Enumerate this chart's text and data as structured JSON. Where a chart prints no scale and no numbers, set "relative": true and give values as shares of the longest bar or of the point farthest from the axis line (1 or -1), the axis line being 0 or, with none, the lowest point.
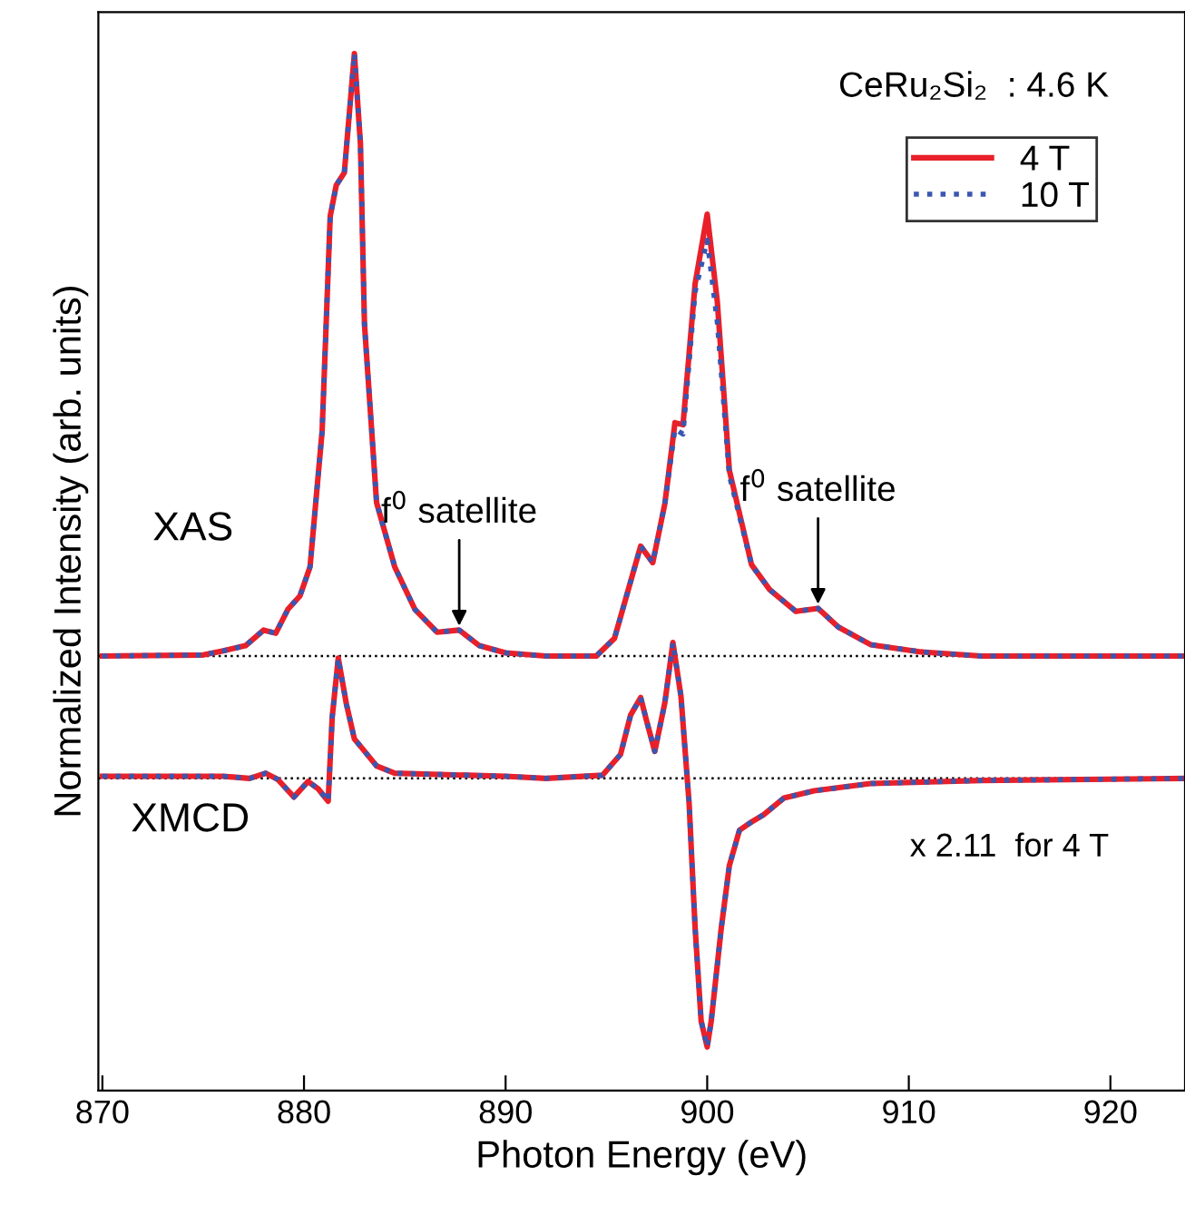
{
  "chart_data": {
    "type": "line",
    "relative": true,
    "xlabel": "Photon Energy (eV)",
    "ylabel": "Normalized Intensity (arb. units)",
    "xlim": [
      869.8,
      923.7
    ],
    "xticks": [
      870,
      880,
      890,
      900,
      910,
      920
    ],
    "legend": "top right",
    "grid": false,
    "marker": "none",
    "series": [
      {
        "name": "4 T",
        "color": "#e8202a",
        "line_style": "solid",
        "x": [
          870,
          875,
          876.0,
          877.1,
          878.0,
          878.6,
          879.2,
          879.8,
          880.3,
          880.9,
          881.3,
          881.6,
          882.0,
          882.5,
          882.8,
          883.0,
          883.6,
          884.5,
          885.5,
          886.6,
          887.7,
          888.7,
          890,
          892,
          894.5,
          895.4,
          896.0,
          896.7,
          897.3,
          897.9,
          898.4,
          898.8,
          899.4,
          900.0,
          900.5,
          901.1,
          902.2,
          903.1,
          904.4,
          905.5,
          906.5,
          908.1,
          910.6,
          913.6,
          923.7
        ],
        "values": [
          0.419,
          0.42,
          0.424,
          0.429,
          0.444,
          0.441,
          0.464,
          0.477,
          0.505,
          0.636,
          0.843,
          0.873,
          0.885,
          1.0,
          0.913,
          0.739,
          0.567,
          0.505,
          0.464,
          0.442,
          0.444,
          0.429,
          0.422,
          0.419,
          0.419,
          0.436,
          0.477,
          0.525,
          0.509,
          0.566,
          0.644,
          0.642,
          0.778,
          0.845,
          0.761,
          0.598,
          0.507,
          0.483,
          0.462,
          0.465,
          0.447,
          0.43,
          0.423,
          0.419,
          0.419
        ]
      },
      {
        "name": "10 T",
        "color": "#3a56b0",
        "line_style": "dotted",
        "x": [
          870,
          875,
          876.0,
          877.1,
          878.0,
          878.6,
          879.2,
          879.8,
          880.3,
          880.9,
          881.3,
          881.6,
          882.0,
          882.5,
          882.8,
          883.0,
          883.6,
          884.5,
          885.5,
          886.6,
          887.7,
          888.7,
          890,
          892,
          894.5,
          895.4,
          896.0,
          896.7,
          897.3,
          897.9,
          898.4,
          898.8,
          899.4,
          900.0,
          900.5,
          901.1,
          902.2,
          903.1,
          904.4,
          905.5,
          906.5,
          908.1,
          910.6,
          913.6,
          923.7
        ],
        "values": [
          0.419,
          0.42,
          0.424,
          0.429,
          0.444,
          0.441,
          0.464,
          0.477,
          0.505,
          0.636,
          0.843,
          0.873,
          0.885,
          1.0,
          0.913,
          0.739,
          0.567,
          0.505,
          0.464,
          0.442,
          0.444,
          0.429,
          0.422,
          0.419,
          0.419,
          0.436,
          0.477,
          0.525,
          0.509,
          0.566,
          0.638,
          0.633,
          0.77,
          0.82,
          0.741,
          0.593,
          0.507,
          0.483,
          0.462,
          0.465,
          0.447,
          0.43,
          0.423,
          0.419,
          0.419
        ]
      },
      {
        "color": "#e8202a",
        "line_style": "solid",
        "x": [
          870,
          876,
          877.3,
          878.1,
          878.7,
          879.5,
          880.2,
          880.7,
          881.2,
          881.4,
          881.7,
          882.1,
          882.5,
          882.8,
          883.6,
          884.5,
          890,
          892.0,
          894.8,
          895.7,
          896.2,
          896.7,
          897.0,
          897.4,
          897.9,
          898.3,
          898.7,
          899.1,
          899.4,
          899.7,
          900.0,
          900.2,
          900.7,
          901.1,
          901.6,
          902.2,
          902.8,
          903.8,
          905.3,
          908.1,
          913.6,
          923.7
        ],
        "values": [
          0.303,
          0.303,
          0.301,
          0.306,
          0.3,
          0.283,
          0.298,
          0.291,
          0.279,
          0.36,
          0.417,
          0.373,
          0.339,
          0.332,
          0.313,
          0.306,
          0.303,
          0.301,
          0.304,
          0.324,
          0.362,
          0.379,
          0.356,
          0.327,
          0.374,
          0.432,
          0.38,
          0.278,
          0.157,
          0.067,
          0.042,
          0.067,
          0.157,
          0.217,
          0.251,
          0.259,
          0.266,
          0.282,
          0.289,
          0.296,
          0.299,
          0.301
        ]
      },
      {
        "color": "#3a56b0",
        "line_style": "dotted",
        "x": [
          870,
          876,
          877.3,
          878.1,
          878.7,
          879.5,
          880.2,
          880.7,
          881.2,
          881.4,
          881.7,
          882.1,
          882.5,
          882.8,
          883.6,
          884.5,
          890,
          892.0,
          894.8,
          895.7,
          896.2,
          896.7,
          897.0,
          897.4,
          897.9,
          898.3,
          898.7,
          899.1,
          899.4,
          899.7,
          900.0,
          900.2,
          900.7,
          901.1,
          901.6,
          902.2,
          902.8,
          903.8,
          905.3,
          908.1,
          913.6,
          923.7
        ],
        "values": [
          0.303,
          0.303,
          0.301,
          0.306,
          0.3,
          0.283,
          0.298,
          0.291,
          0.279,
          0.36,
          0.417,
          0.373,
          0.339,
          0.332,
          0.313,
          0.306,
          0.303,
          0.301,
          0.304,
          0.324,
          0.362,
          0.379,
          0.356,
          0.327,
          0.374,
          0.432,
          0.38,
          0.278,
          0.157,
          0.067,
          0.042,
          0.067,
          0.157,
          0.217,
          0.251,
          0.259,
          0.266,
          0.282,
          0.289,
          0.296,
          0.299,
          0.301
        ]
      }
    ],
    "ref_lines": [
      {
        "axis": "y",
        "value": 0.419,
        "color": "#000000",
        "line_style": "dotted"
      },
      {
        "axis": "y",
        "value": 0.301,
        "color": "#000000",
        "line_style": "dotted"
      }
    ],
    "annotations": [
      "CeRu₂Si₂  : 4.6 K",
      "XAS",
      "XMCD",
      {
        "text": "f$^{0}$ satellite",
        "x": 887.7,
        "y": 0.444
      },
      {
        "text": "f$^{0}$ satellite",
        "x": 905.5,
        "y": 0.465
      },
      "x 2.11  for 4 T"
    ]
  }
}
